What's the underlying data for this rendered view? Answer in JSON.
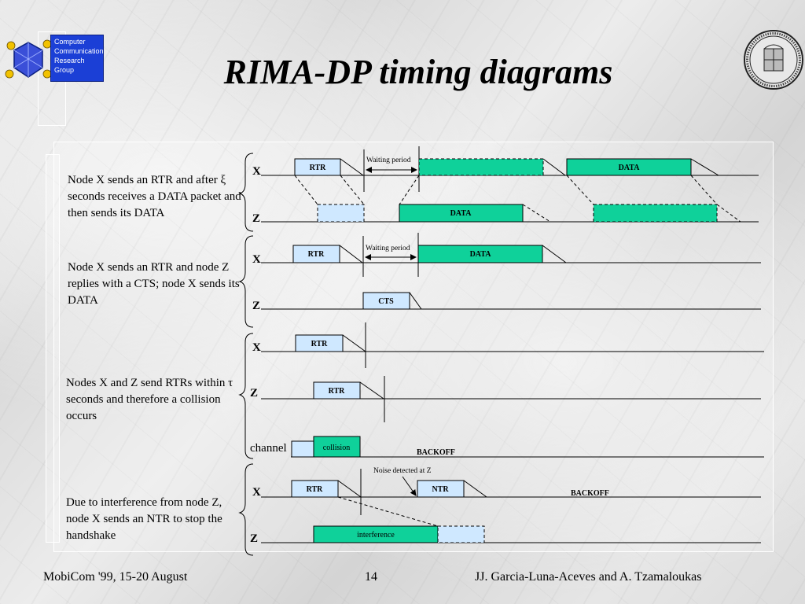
{
  "title": "RIMA-DP timing diagrams",
  "logo": {
    "lines": [
      "Computer",
      "Communication",
      "Research",
      "Group"
    ]
  },
  "descriptions": [
    "Node X sends an RTR and after ξ seconds receives a DATA packet and then sends its DATA",
    "Node X sends an RTR and node Z replies with a CTS; node X sends its DATA",
    "Nodes X and Z send RTRs within τ seconds and therefore a collision occurs",
    "Due to interference from node Z, node X sends an NTR to stop the handshake"
  ],
  "diagram": {
    "scenario1": {
      "node_x": "X",
      "node_z": "Z",
      "rtr": "RTR",
      "waiting": "Waiting period",
      "data_x": "DATA",
      "data_z": "DATA"
    },
    "scenario2": {
      "node_x": "X",
      "node_z": "Z",
      "rtr": "RTR",
      "waiting": "Waiting period",
      "data_x": "DATA",
      "cts": "CTS"
    },
    "scenario3": {
      "node_x": "X",
      "node_z": "Z",
      "channel": "channel",
      "rtr_x": "RTR",
      "rtr_z": "RTR",
      "collision": "collision",
      "backoff": "BACKOFF"
    },
    "scenario4": {
      "node_x": "X",
      "node_z": "Z",
      "rtr": "RTR",
      "ntr": "NTR",
      "noise": "Noise detected at Z",
      "backoff": "BACKOFF",
      "interference": "interference"
    }
  },
  "colors": {
    "data_green": "#0fd19a",
    "light_blue": "#cfe8ff",
    "logo_blue": "#1b3fd6"
  },
  "footer": {
    "left": "MobiCom '99, 15-20 August",
    "page": "14",
    "right": "JJ. Garcia-Luna-Aceves and A. Tzamaloukas"
  }
}
